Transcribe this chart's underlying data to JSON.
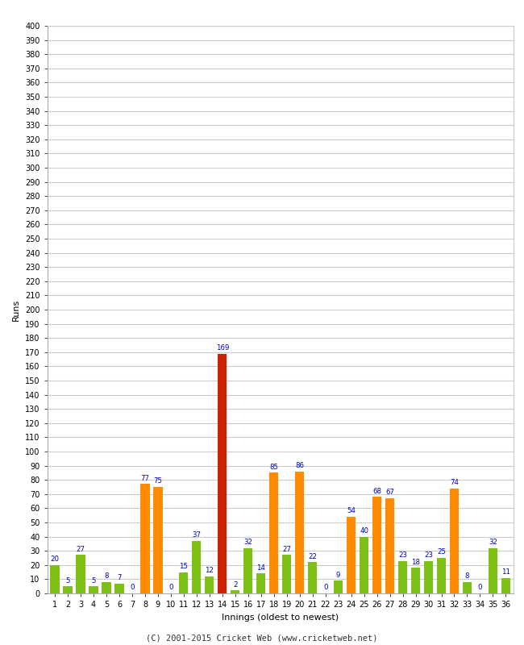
{
  "innings": [
    1,
    2,
    3,
    4,
    5,
    6,
    7,
    8,
    9,
    10,
    11,
    12,
    13,
    14,
    15,
    16,
    17,
    18,
    19,
    20,
    21,
    22,
    23,
    24,
    25,
    26,
    27,
    28,
    29,
    30,
    31,
    32,
    33,
    34,
    35,
    36
  ],
  "values": [
    20,
    5,
    27,
    5,
    8,
    7,
    0,
    77,
    75,
    0,
    15,
    37,
    12,
    169,
    2,
    32,
    14,
    85,
    27,
    86,
    22,
    0,
    9,
    54,
    40,
    68,
    67,
    23,
    18,
    23,
    25,
    74,
    8,
    0,
    32,
    11
  ],
  "colors": [
    "green",
    "green",
    "green",
    "green",
    "green",
    "green",
    "green",
    "orange",
    "orange",
    "green",
    "green",
    "green",
    "green",
    "red",
    "green",
    "green",
    "green",
    "orange",
    "green",
    "orange",
    "green",
    "green",
    "green",
    "orange",
    "green",
    "orange",
    "orange",
    "green",
    "green",
    "green",
    "green",
    "orange",
    "green",
    "green",
    "green",
    "green"
  ],
  "bar_color_map": {
    "green": "#7DC116",
    "orange": "#FF8C00",
    "red": "#CC2200"
  },
  "xlabel": "Innings (oldest to newest)",
  "ylabel": "Runs",
  "ylim": [
    0,
    400
  ],
  "yticks": [
    0,
    10,
    20,
    30,
    40,
    50,
    60,
    70,
    80,
    90,
    100,
    110,
    120,
    130,
    140,
    150,
    160,
    170,
    180,
    190,
    200,
    210,
    220,
    230,
    240,
    250,
    260,
    270,
    280,
    290,
    300,
    310,
    320,
    330,
    340,
    350,
    360,
    370,
    380,
    390,
    400
  ],
  "background_color": "#ffffff",
  "grid_color": "#cccccc",
  "label_color": "#0000cc",
  "footer": "(C) 2001-2015 Cricket Web (www.cricketweb.net)"
}
